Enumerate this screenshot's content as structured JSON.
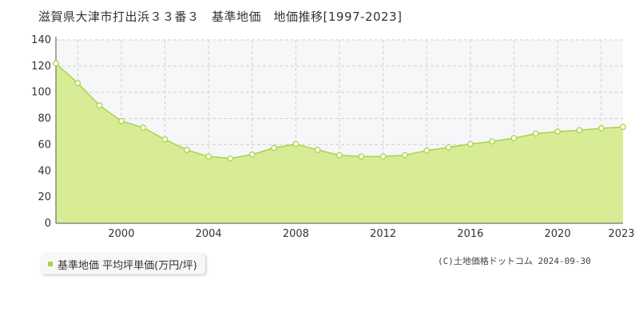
{
  "title": "滋賀県大津市打出浜３３番３　基準地価　地価推移[1997-2023]",
  "legend": {
    "label": "基準地価 平均坪単価(万円/坪)"
  },
  "credit": "(C)土地価格ドットコム 2024-09-30",
  "colors": {
    "fill": "#d8ec96",
    "line": "#a9d346",
    "point_fill": "#ffffff",
    "grid": "#d0d0d0",
    "plot_bg": "#f7f6f9"
  },
  "chart_data": {
    "type": "area",
    "title": "滋賀県大津市打出浜３３番３　基準地価　地価推移[1997-2023]",
    "xlabel": "",
    "ylabel": "",
    "x": [
      1997,
      1998,
      1999,
      2000,
      2001,
      2002,
      2003,
      2004,
      2005,
      2006,
      2007,
      2008,
      2009,
      2010,
      2011,
      2012,
      2013,
      2014,
      2015,
      2016,
      2017,
      2018,
      2019,
      2020,
      2021,
      2022,
      2023
    ],
    "series": [
      {
        "name": "基準地価 平均坪単価(万円/坪)",
        "values": [
          122,
          107,
          90,
          78,
          73,
          64,
          56,
          51,
          49.5,
          52.5,
          57.5,
          60.5,
          56,
          52,
          51,
          51,
          52,
          55.5,
          58,
          60.5,
          62.5,
          65,
          68.5,
          70,
          71,
          72.5,
          73.5
        ]
      }
    ],
    "x_ticks": [
      "2000",
      "2004",
      "2008",
      "2012",
      "2016",
      "2020",
      "2023"
    ],
    "x_tick_values": [
      2000,
      2004,
      2008,
      2012,
      2016,
      2020,
      2023
    ],
    "y_ticks": [
      "0",
      "20",
      "40",
      "60",
      "80",
      "100",
      "120",
      "140"
    ],
    "y_tick_values": [
      0,
      20,
      40,
      60,
      80,
      100,
      120,
      140
    ],
    "xlim": [
      1997,
      2023
    ],
    "ylim": [
      0,
      140
    ],
    "grid": true,
    "legend_position": "bottom-left"
  }
}
